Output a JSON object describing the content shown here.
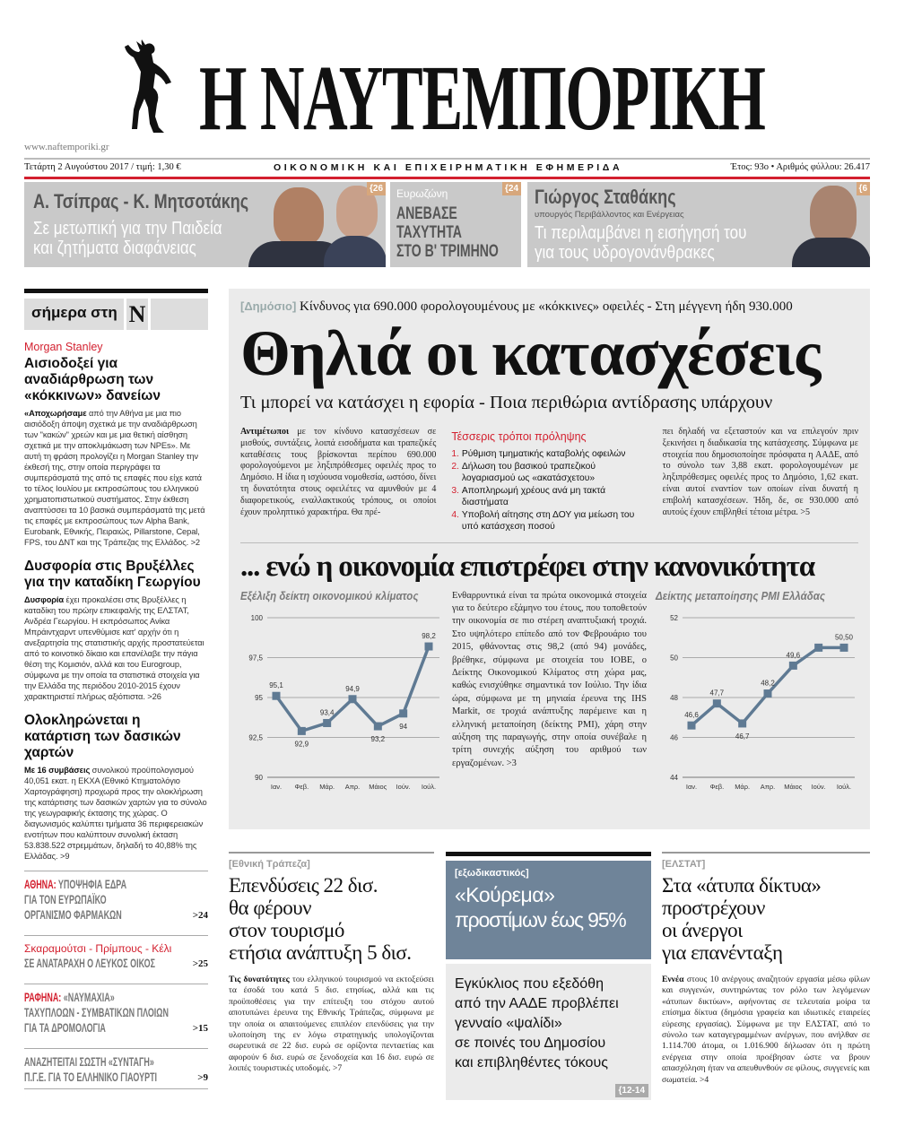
{
  "masthead": {
    "title": "Η ΝΑΥΤΕΜΠΟΡΙΚΗ",
    "url": "www.naftemporiki.gr",
    "date_price": "Τετάρτη 2 Αυγούστου 2017 / τιμή: 1,30 €",
    "tagline": "ΟΙΚΟΝΟΜΙΚΗ ΚΑΙ ΕΠΙΧΕΙΡΗΜΑΤΙΚΗ ΕΦΗΜΕΡΙΔΑ",
    "issue": "Έτος: 93ο • Αριθμός φύλλου: 26.417",
    "logo_icon": "hermes-statue-icon"
  },
  "colors": {
    "accent_red": "#d3202f",
    "promo_gray": "#c9c9c9",
    "panel_gray": "#ebebeb",
    "chart_line": "#5f7a93",
    "slate_box": "#6f8499",
    "page_ref": "#d7a77c"
  },
  "promos": [
    {
      "title": "Α. Τσίπρας - Κ. Μητσοτάκης",
      "subtitle_lines": [
        "Σε μετωπική για την Παιδεία",
        "και ζητήματα διαφάνειας"
      ],
      "page": "{26"
    },
    {
      "kicker": "Ευρωζώνη",
      "lines": [
        "ΑΝΕΒΑΣΕ",
        "ΤΑΧΥΤΗΤΑ",
        "ΣΤΟ Β' ΤΡΙΜΗΝΟ"
      ],
      "page": "{24"
    },
    {
      "title": "Γιώργος Σταθάκης",
      "role": "υπουργός Περιβάλλοντος και Ενέργειας",
      "subtitle_lines": [
        "Τι περιλαμβάνει η εισήγησή του",
        "για τους υδρογονάνθρακες"
      ],
      "page": "{6"
    }
  ],
  "sidebar": {
    "header": "σήμερα στη",
    "header_logo": "N",
    "stories": [
      {
        "kicker": "Morgan Stanley",
        "title": "Αισιοδοξεί για αναδιάρθρωση των «κόκκινων» δανείων",
        "lead": "«Αποχωρήσαμε",
        "body": " από την Αθήνα με μια πιο αισιόδοξη άποψη σχετικά με την αναδιάρθρωση των \"κακών\" χρεών και με μια θετική αίσθηση σχετικά με την αποκλιμάκωση των NPEs». Με αυτή τη φράση προλογίζει η Morgan Stanley την έκθεσή της, στην οποία περιγράφει τα συμπεράσματά της από τις επαφές που είχε κατά το τέλος Ιουλίου με εκπροσώπους του ελληνικού χρηματοπιστωτικού συστήματος. Στην έκθεση αναπτύσσει τα 10 βασικά συμπεράσματά της μετά τις επαφές με εκπροσώπους των Alpha Bank, Eurobank, Εθνικής, Πειραιώς, Pillarstone, Cepal, FPS, του ΔΝΤ και της Τράπεζας της Ελλάδος. >2"
      },
      {
        "title": "Δυσφορία στις Βρυξέλλες για την καταδίκη Γεωργίου",
        "lead": "Δυσφορία",
        "body": " έχει προκαλέσει στις Βρυξέλλες η καταδίκη του πρώην επικεφαλής της ΕΛΣΤΑΤ, Ανδρέα Γεωργίου. Η εκπρόσωπος Ανίκα Μπράιντχαρντ υπενθύμισε κατ' αρχήν ότι η ανεξαρτησία της στατιστικής αρχής προστατεύεται από το κοινοτικό δίκαιο και επανέλαβε την πάγια θέση της Κομισιόν, αλλά και του Eurogroup, σύμφωνα με την οποία τα στατιστικά στοιχεία για την Ελλάδα της περιόδου 2010-2015 έχουν χαρακτηριστεί πλήρως αξιόπιστα. >26"
      },
      {
        "title": "Ολοκληρώνεται η κατάρτιση των δασικών χαρτών",
        "lead": "Με 16 συμβάσεις",
        "body": " συνολικού προϋπολογισμού 40,051 εκατ. η ΕΚΧΑ (Εθνικό Κτηματολόγιο Χαρτογράφηση) προχωρά προς την ολοκλήρωση της κατάρτισης των δασικών χαρτών για το σύνολο της γεωγραφικής έκτασης της χώρας.  Ο διαγωνισμός καλύπτει τμήματα 36 περιφερειακών ενοτήτων που καλύπτουν συνολική έκταση 53.838.522 στρεμμάτων, δηλαδή το 40,88% της Ελλάδας. >9"
      }
    ],
    "briefs": [
      {
        "red": "ΑΘΗΝΑ:",
        "lines": [
          " ΥΠΟΨΗΦΙΑ ΕΔΡΑ",
          "ΓΙΑ ΤΟΝ ΕΥΡΩΠΑΪΚΟ",
          "ΟΡΓΑΝΙΣΜΟ ΦΑΡΜΑΚΩΝ"
        ],
        "page": ">24"
      },
      {
        "red": "Σκαραμούτσι - Πρίμπους - Κέλι",
        "lines": [
          "ΣΕ ΑΝΑΤΑΡΑΧΗ Ο ΛΕΥΚΟΣ ΟΙΚΟΣ"
        ],
        "page": ">25"
      },
      {
        "red": "ΡΑΦΗΝΑ:",
        "lines": [
          " «ΝΑΥΜΑΧΙΑ»",
          "ΤΑΧΥΠΛΟΩΝ - ΣΥΜΒΑΤΙΚΩΝ ΠΛΟΙΩΝ",
          "ΓΙΑ ΤΑ ΔΡΟΜΟΛΟΓΙΑ"
        ],
        "page": ">15"
      },
      {
        "red": "",
        "lines": [
          "ΑΝΑΖΗΤΕΙΤΑΙ ΣΩΣΤΗ «ΣΥΝΤΑΓΗ»",
          "Π.Γ.Ε. ΓΙΑ ΤΟ ΕΛΛΗΝΙΚΟ ΓΙΑΟΥΡΤΙ"
        ],
        "page": ">9"
      }
    ]
  },
  "lead_story": {
    "kicker": "[Δημόσιο]",
    "overline": "Κίνδυνος για 690.000 φορολογουμένους με «κόκκινες» οφειλές - Στη μέγγενη ήδη 930.000",
    "headline": "Θηλιά οι κατασχέσεις",
    "subhead": "Τι μπορεί να κατάσχει η εφορία - Ποια περιθώρια αντίδρασης υπάρχουν",
    "col1_lead": "Αντιμέτωποι",
    "col1": " με τον κίνδυνο κατασχέσεων σε μισθούς, συντάξεις, λοιπά εισοδήματα και τραπεζικές καταθέσεις τους βρίσκονται περίπου 690.000 φορολογούμενοι με ληξιπρόθεσμες οφειλές προς το Δημόσιο. Η ίδια η ισχύουσα νομοθεσία, ωστόσο, δίνει τη δυνατότητα στους οφειλέτες να αμυνθούν με 4 διαφορετικούς, εναλλακτικούς τρόπους, οι οποίοι έχουν προληπτικό χαρακτήρα. Θα πρέ-",
    "box_title": "Τέσσερις τρόποι πρόληψης",
    "box_items": [
      {
        "n": "1.",
        "t": "Ρύθμιση τμηματικής καταβολής οφειλών"
      },
      {
        "n": "2.",
        "t": "Δήλωση του βασικού τραπεζικού λογαριασμού ως «ακατάσχετου»"
      },
      {
        "n": "3.",
        "t": "Αποπληρωμή χρέους ανά μη τακτά διαστήματα"
      },
      {
        "n": "4.",
        "t": "Υποβολή αίτησης στη ΔΟΥ για μείωση του υπό κατάσχεση ποσού"
      }
    ],
    "col3": "πει δηλαδή να εξεταστούν και να επιλεγούν πριν ξεκινήσει η διαδικασία της κατάσχεσης. Σύμφωνα με στοιχεία που δημοσιοποίησε πρόσφατα η ΑΑΔΕ, από το σύνολο των 3,88 εκατ. φορολογουμένων με ληξιπρόθεσμες οφειλές προς το Δημόσιο, 1,62 εκατ. είναι αυτοί εναντίον των οποίων είναι δυνατή η επιβολή κατασχέσεων. Ήδη, δε, σε 930.000 από αυτούς έχουν επιβληθεί τέτοια μέτρα. >5"
  },
  "economy_story": {
    "headline": "... ενώ η οικονομία επιστρέφει στην κανονικότητα",
    "body": "Ενθαρρυντικά είναι τα πρώτα οικονομικά στοιχεία για το δεύτερο εξάμηνο του έτους, που τοποθετούν την οικονομία σε πιο στέρεη αναπτυξιακή τροχιά. Στο υψηλότερο επίπεδο από τον Φεβρουάριο του 2015, φθάνοντας στις 98,2 (από 94) μονάδες, βρέθηκε, σύμφωνα με στοιχεία του ΙΟΒΕ, ο Δείκτης Οικονομικού Κλίματος στη χώρα μας, καθώς ενισχύθηκε σημαντικά τον Ιούλιο. Την ίδια ώρα, σύμφωνα με τη μηνιαία έρευνα της IHS Markit, σε τροχιά ανάπτυξης παρέμεινε και η ελληνική μεταποίηση (δείκτης PMI), χάρη στην αύξηση της παραγωγής, στην οποία συνέβαλε η τρίτη συνεχής αύξηση του αριθμού των εργαζομένων. >3"
  },
  "chart_data": [
    {
      "type": "line",
      "title": "Εξέλιξη δείκτη οικονομικού κλίματος",
      "categories": [
        "Ιαν.",
        "Φεβ.",
        "Μάρ.",
        "Απρ.",
        "Μάιος",
        "Ιούν.",
        "Ιούλ."
      ],
      "values": [
        95.1,
        92.9,
        93.4,
        94.9,
        93.2,
        94,
        98.2
      ],
      "data_labels": [
        "95,1",
        "92,9",
        "93,4",
        "94,9",
        "93,2",
        "94",
        "98,2"
      ],
      "yticks": [
        "90",
        "92,5",
        "95",
        "97,5",
        "100"
      ],
      "ylim": [
        90,
        100
      ],
      "grid": true,
      "marker": "square"
    },
    {
      "type": "line",
      "title": "Δείκτης μεταποίησης PMI Ελλάδας",
      "categories": [
        "Ιαν.",
        "Φεβ.",
        "Μάρ.",
        "Απρ.",
        "Μάιος",
        "Ιούν.",
        "Ιούλ."
      ],
      "values": [
        46.6,
        47.7,
        46.7,
        48.2,
        49.6,
        50.5,
        50.5
      ],
      "data_labels": [
        "46,6",
        "47,7",
        "46,7",
        "48,2",
        "49,6",
        "",
        "50,50"
      ],
      "yticks": [
        "44",
        "46",
        "48",
        "50",
        "52"
      ],
      "ylim": [
        44,
        52
      ],
      "grid": true,
      "marker": "square"
    }
  ],
  "bottom": {
    "left": {
      "kicker": "[Εθνική Τράπεζα]",
      "headline_lines": [
        "Επενδύσεις 22 δισ.",
        "θα φέρουν",
        "στον τουρισμό",
        "ετήσια ανάπτυξη 5 δισ."
      ],
      "lead": "Τις δυνατότητες",
      "body": " του ελληνικού τουρισμού να εκτοξεύσει τα έσοδά του κατά 5 δισ. ετησίως, αλλά και τις προϋποθέσεις για την επίτευξη του στόχου αυτού αποτυπώνει έρευνα της Εθνικής Τράπεζας, σύμφωνα με την οποία οι απαιτούμενες επιπλέον επενδύσεις για την υλοποίηση της εν λόγω στρατηγικής υπολογίζονται σωρευτικά σε 22 δισ. ευρώ σε ορίζοντα πενταετίας και αφορούν 6 δισ. ευρώ σε ξενοδοχεία και 16 δισ. ευρώ σε λοιπές τουριστικές υποδομές. >7"
    },
    "center": {
      "kicker": "[εξωδικαστικός]",
      "headline_lines": [
        "«Κούρεμα»",
        "προστίμων έως 95%"
      ],
      "body_lines": [
        "Εγκύκλιος που εξεδόθη",
        "από την ΑΑΔΕ προβλέπει",
        "γενναίο «ψαλίδι»",
        "σε ποινές του Δημοσίου",
        "και επιβληθέντες τόκους"
      ],
      "page": "{12-14"
    },
    "right": {
      "kicker": "[ΕΛΣΤΑΤ]",
      "headline_lines": [
        "Στα «άτυπα δίκτυα»",
        "προστρέχουν",
        "οι άνεργοι",
        "για επανένταξη"
      ],
      "lead": "Εννέα",
      "body": " στους 10 ανέργους αναζητούν εργασία μέσω φίλων και συγγενών, συντηρώντας τον ρόλο των λεγόμενων «άτυπων δικτύων», αφήνοντας σε τελευταία μοίρα τα επίσημα δίκτυα (δημόσια γραφεία και ιδιωτικές εταιρείες εύρεσης εργασίας). Σύμφωνα με την ΕΛΣΤΑΤ, από το σύνολο των καταγεγραμμένων ανέργων, που ανήλθαν σε 1.114.700 άτομα, οι 1.016.900 δήλωσαν ότι η πρώτη ενέργεια στην οποία προέβησαν ώστε να βρουν απασχόληση ήταν να απευθυνθούν σε φίλους, συγγενείς και σωματεία. >4"
    }
  }
}
